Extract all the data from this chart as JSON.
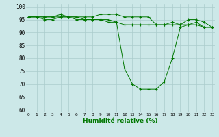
{
  "line1_y": [
    96,
    96,
    96,
    96,
    97,
    96,
    96,
    96,
    96,
    97,
    97,
    97,
    96,
    96,
    96,
    96,
    93,
    93,
    94,
    93,
    95,
    95,
    94,
    92
  ],
  "line2_y": [
    96,
    96,
    96,
    96,
    96,
    96,
    95,
    95,
    95,
    95,
    95,
    94,
    76,
    70,
    68,
    68,
    68,
    71,
    80,
    92,
    93,
    94,
    92,
    92
  ],
  "line3_y": [
    96,
    96,
    95,
    95,
    96,
    96,
    96,
    95,
    95,
    95,
    94,
    94,
    93,
    93,
    93,
    93,
    93,
    93,
    93,
    93,
    93,
    93,
    92,
    92
  ],
  "x": [
    0,
    1,
    2,
    3,
    4,
    5,
    6,
    7,
    8,
    9,
    10,
    11,
    12,
    13,
    14,
    15,
    16,
    17,
    18,
    19,
    20,
    21,
    22,
    23
  ],
  "bg_color": "#cce8e8",
  "grid_color": "#aacccc",
  "line_color": "#007700",
  "xlabel": "Humidité relative (%)",
  "xlabel_color": "#007700",
  "yticks": [
    60,
    65,
    70,
    75,
    80,
    85,
    90,
    95,
    100
  ],
  "xlim": [
    -0.3,
    23.3
  ],
  "ylim": [
    59,
    101
  ],
  "figwidth": 3.2,
  "figheight": 2.0,
  "dpi": 100
}
